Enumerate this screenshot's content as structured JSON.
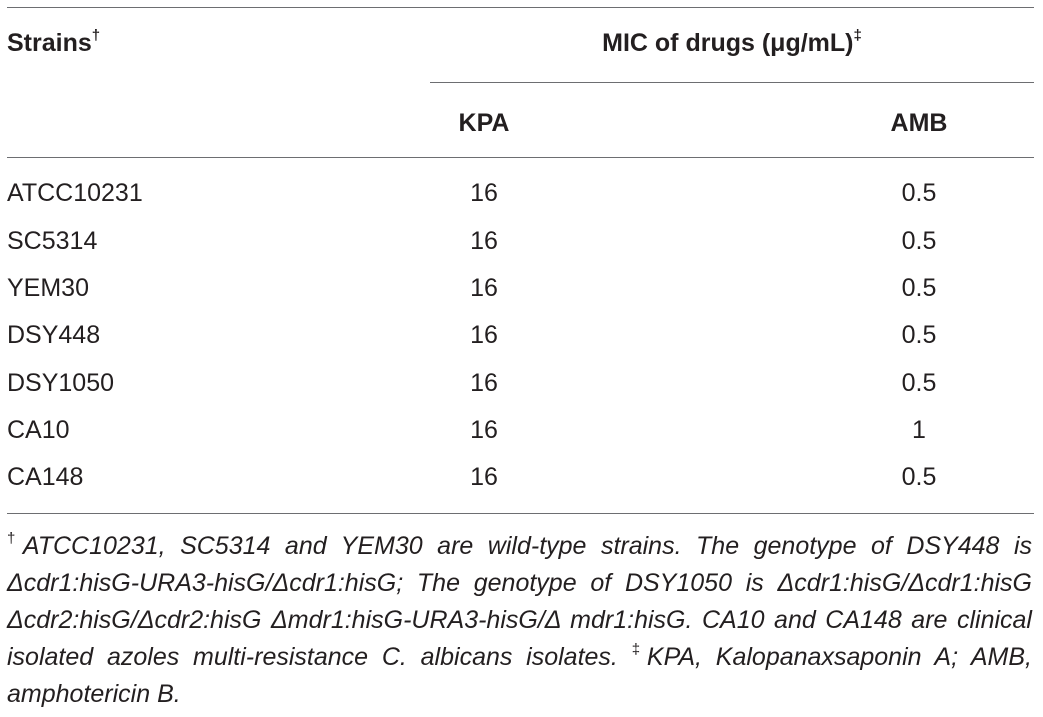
{
  "table": {
    "header": {
      "strains_label": "Strains",
      "strains_mark": "†",
      "mic_label": "MIC of drugs (μg/mL)",
      "mic_mark": "‡",
      "col_kpa": "KPA",
      "col_amb": "AMB"
    },
    "rows": [
      {
        "strain": "ATCC10231",
        "kpa": "16",
        "amb": "0.5"
      },
      {
        "strain": "SC5314",
        "kpa": "16",
        "amb": "0.5"
      },
      {
        "strain": "YEM30",
        "kpa": "16",
        "amb": "0.5"
      },
      {
        "strain": "DSY448",
        "kpa": "16",
        "amb": "0.5"
      },
      {
        "strain": "DSY1050",
        "kpa": "16",
        "amb": "0.5"
      },
      {
        "strain": "CA10",
        "kpa": "16",
        "amb": "1"
      },
      {
        "strain": "CA148",
        "kpa": "16",
        "amb": "0.5"
      }
    ]
  },
  "footnote": {
    "mark1": "†",
    "text1": "ATCC10231, SC5314 and YEM30 are wild-type strains. The genotype of DSY448 is Δcdr1:hisG-URA3-hisG/Δcdr1:hisG; The genotype of DSY1050 is Δcdr1:hisG/Δcdr1:hisG Δcdr2:hisG/Δcdr2:hisG Δmdr1:hisG-URA3-hisG/Δ mdr1:hisG. CA10 and CA148 are clinical isolated azoles multi-resistance C. albicans isolates.",
    "mark2": "‡",
    "text2": "KPA, Kalopanaxsaponin A; AMB, amphotericin B."
  }
}
